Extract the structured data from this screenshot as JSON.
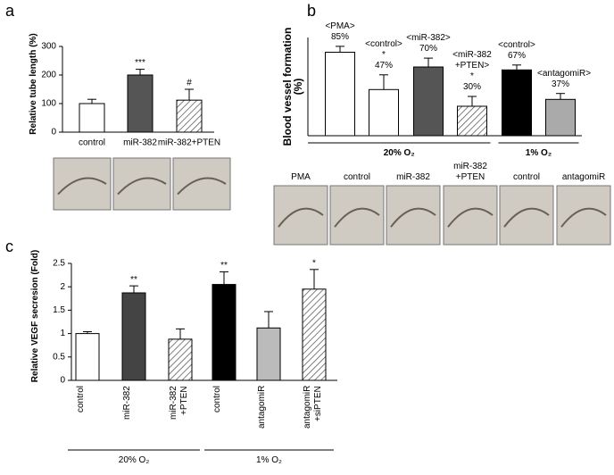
{
  "chart_data": [
    {
      "type": "bar",
      "panel": "a",
      "ylabel": "Relative tube length (%)",
      "categories": [
        "control",
        "miR-382",
        "miR-382+PTEN"
      ],
      "values": [
        100,
        200,
        112
      ],
      "errors": [
        15,
        20,
        38
      ],
      "colors": [
        "#ffffff",
        "#555555",
        "#ffffff"
      ],
      "hatched": [
        false,
        false,
        true
      ],
      "markers": [
        null,
        "***",
        "#"
      ],
      "ylim": [
        0,
        300
      ],
      "yticks": [
        0,
        100,
        200,
        300
      ]
    },
    {
      "type": "bar",
      "panel": "b",
      "ylabel": "Blood vessel formation (%)",
      "categories": [
        "<PMA>",
        "<control>",
        "<miR-382>",
        "<miR-382 +PTEN>",
        "<control>",
        "<antagomiR>"
      ],
      "values": [
        85,
        47,
        70,
        30,
        67,
        37
      ],
      "value_labels": [
        "85%",
        "47%",
        "70%",
        "30%",
        "67%",
        "37%"
      ],
      "errors": [
        6,
        15,
        9,
        10,
        5,
        6
      ],
      "colors": [
        "#ffffff",
        "#ffffff",
        "#555555",
        "#ffffff",
        "#000000",
        "#aaaaaa"
      ],
      "hatched": [
        false,
        false,
        false,
        true,
        false,
        false
      ],
      "markers": [
        null,
        "*",
        null,
        "*",
        null,
        null
      ],
      "groups": [
        {
          "name": "20% O₂",
          "size": 4
        },
        {
          "name": "1% O₂",
          "size": 2
        }
      ],
      "image_labels": [
        "PMA",
        "control",
        "miR-382",
        "miR-382 +PTEN",
        "control",
        "antagomiR"
      ],
      "ylim": [
        0,
        100
      ]
    },
    {
      "type": "bar",
      "panel": "c",
      "ylabel": "Relative VEGF secresion (Fold)",
      "categories": [
        "control",
        "miR-382",
        "miR-382 +PTEN",
        "control",
        "antagomiR",
        "antagomiR +siPTEN"
      ],
      "values": [
        1.0,
        1.87,
        0.88,
        2.05,
        1.12,
        1.95
      ],
      "errors": [
        0.04,
        0.15,
        0.22,
        0.27,
        0.35,
        0.42
      ],
      "colors": [
        "#ffffff",
        "#444444",
        "#ffffff",
        "#000000",
        "#bbbbbb",
        "#ffffff"
      ],
      "hatched": [
        false,
        false,
        true,
        false,
        false,
        true
      ],
      "markers": [
        null,
        "**",
        null,
        "**",
        null,
        "*"
      ],
      "groups": [
        {
          "name": "20% O₂",
          "size": 3
        },
        {
          "name": "1% O₂",
          "size": 3
        }
      ],
      "ylim": [
        0,
        2.5
      ],
      "yticks": [
        0,
        0.5,
        1,
        1.5,
        2,
        2.5
      ]
    }
  ]
}
